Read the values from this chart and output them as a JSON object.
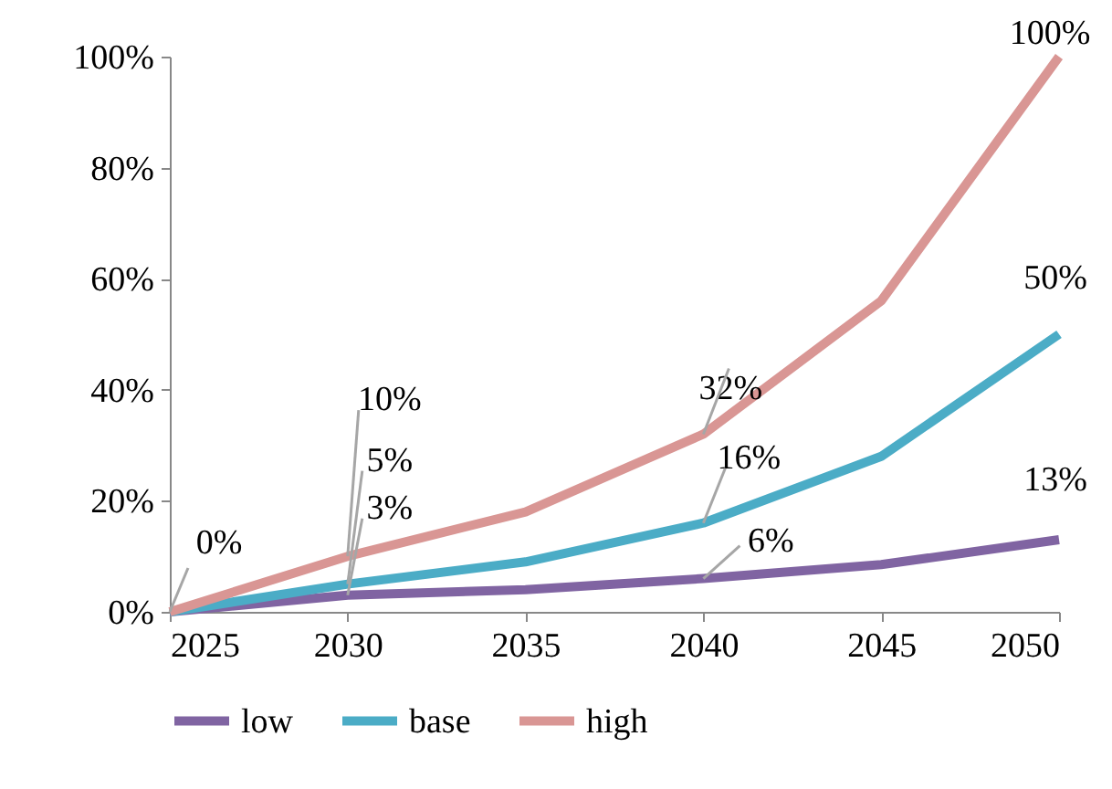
{
  "chart_data": {
    "type": "line",
    "x": [
      2025,
      2030,
      2035,
      2040,
      2045,
      2050
    ],
    "series": [
      {
        "name": "low",
        "color": "#8064a2",
        "values": [
          0,
          3,
          4,
          6,
          8.5,
          13
        ]
      },
      {
        "name": "base",
        "color": "#4bacc6",
        "values": [
          0,
          5,
          9,
          16,
          28,
          50
        ]
      },
      {
        "name": "high",
        "color": "#d99694",
        "values": [
          0,
          10,
          18,
          32,
          56,
          100
        ]
      }
    ],
    "xlim": [
      2025,
      2050
    ],
    "xticks": [
      2025,
      2030,
      2035,
      2040,
      2045,
      2050
    ],
    "ylim": [
      0,
      100
    ],
    "yticks": [
      {
        "value": 0,
        "label": "0%"
      },
      {
        "value": 20,
        "label": "20%"
      },
      {
        "value": 40,
        "label": "40%"
      },
      {
        "value": 60,
        "label": "60%"
      },
      {
        "value": 80,
        "label": "80%"
      },
      {
        "value": 100,
        "label": "100%"
      }
    ],
    "annotations": [
      {
        "text": "0%",
        "x": 2025,
        "y": 0
      },
      {
        "text": "10%",
        "x": 2030,
        "y": 10
      },
      {
        "text": "5%",
        "x": 2030,
        "y": 5
      },
      {
        "text": "3%",
        "x": 2030,
        "y": 3
      },
      {
        "text": "32%",
        "x": 2040,
        "y": 32
      },
      {
        "text": "16%",
        "x": 2040,
        "y": 16
      },
      {
        "text": "6%",
        "x": 2040,
        "y": 6
      },
      {
        "text": "100%",
        "x": 2050,
        "y": 100
      },
      {
        "text": "50%",
        "x": 2050,
        "y": 50
      },
      {
        "text": "13%",
        "x": 2050,
        "y": 13
      }
    ],
    "grid": false,
    "legend": "bottom"
  }
}
